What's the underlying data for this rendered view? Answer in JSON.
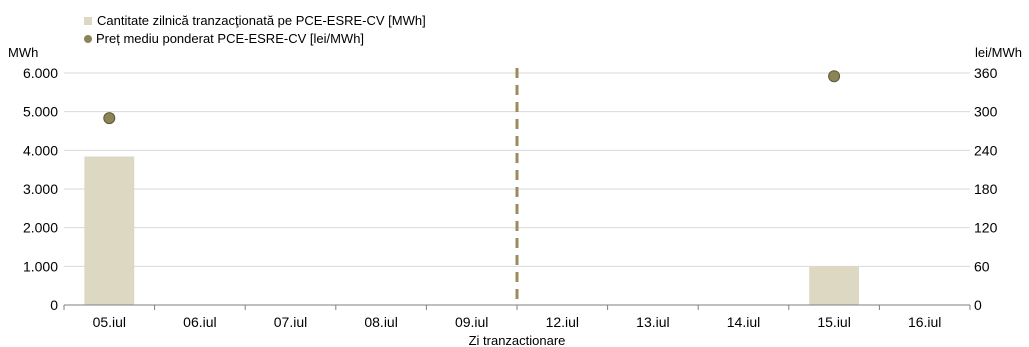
{
  "chart_data": {
    "type": "bar",
    "categories": [
      "05.iul",
      "06.iul",
      "07.iul",
      "08.iul",
      "09.iul",
      "12.iul",
      "13.iul",
      "14.iul",
      "15.iul",
      "16.iul"
    ],
    "series": [
      {
        "name": "Cantitate zilnică tranzacţionată pe PCE-ESRE-CV [MWh]",
        "type": "bar",
        "axis": "left",
        "color": "#ddd8c2",
        "values": [
          3840,
          null,
          null,
          null,
          null,
          null,
          null,
          null,
          1000,
          null
        ]
      },
      {
        "name": "Preț mediu ponderat PCE-ESRE-CV [lei/MWh]",
        "type": "scatter",
        "axis": "right",
        "color": "#8b8456",
        "values": [
          290,
          null,
          null,
          null,
          null,
          null,
          null,
          null,
          355,
          null
        ]
      }
    ],
    "xlabel": "Zi tranzactionare",
    "ylabel_left": "MWh",
    "ylabel_right": "lei/MWh",
    "ylim_left": [
      0,
      6000
    ],
    "yticks_left": [
      "0",
      "1.000",
      "2.000",
      "3.000",
      "4.000",
      "5.000",
      "6.000"
    ],
    "ylim_right": [
      0,
      360
    ],
    "yticks_right": [
      "0",
      "60",
      "120",
      "180",
      "240",
      "300",
      "360"
    ],
    "grid": true,
    "legend_position": "top-left",
    "divider_after_category": "09.iul",
    "divider_color": "#9c8c5a"
  }
}
